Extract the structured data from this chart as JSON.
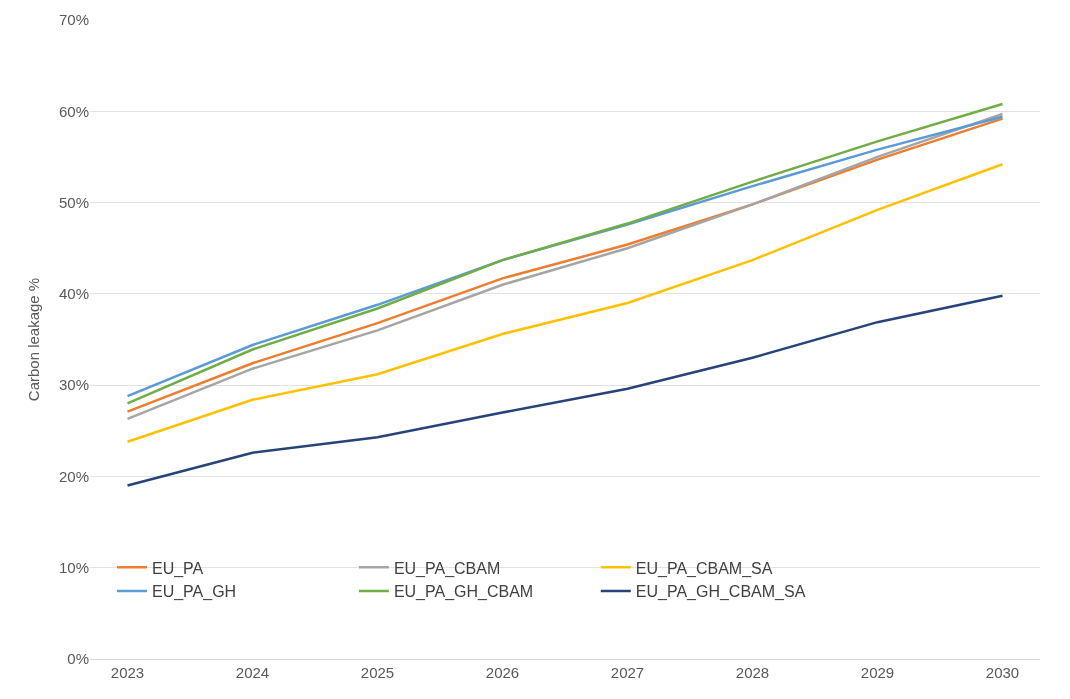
{
  "chart_data": {
    "type": "line",
    "ylabel": "Carbon leakage %",
    "categories": [
      "2023",
      "2024",
      "2025",
      "2026",
      "2027",
      "2028",
      "2029",
      "2030"
    ],
    "series": [
      {
        "name": "EU_PA",
        "color": "#ed7d31",
        "values": [
          27.1,
          32.4,
          36.8,
          41.7,
          45.4,
          49.8,
          54.7,
          59.2
        ]
      },
      {
        "name": "EU_PA_CBAM",
        "color": "#a5a5a5",
        "values": [
          26.3,
          31.8,
          36.0,
          41.0,
          45.0,
          49.8,
          55.0,
          59.7
        ]
      },
      {
        "name": "EU_PA_CBAM_SA",
        "color": "#ffc000",
        "values": [
          23.8,
          28.4,
          31.2,
          35.6,
          39.0,
          43.7,
          49.2,
          54.2
        ]
      },
      {
        "name": "EU_PA_GH",
        "color": "#5b9bd5",
        "values": [
          28.8,
          34.4,
          38.8,
          43.7,
          47.6,
          51.8,
          55.8,
          59.4
        ]
      },
      {
        "name": "EU_PA_GH_CBAM",
        "color": "#70ad47",
        "values": [
          28.0,
          33.9,
          38.4,
          43.7,
          47.7,
          52.3,
          56.7,
          60.8
        ]
      },
      {
        "name": "EU_PA_GH_CBAM_SA",
        "color": "#264478",
        "values": [
          19.0,
          22.6,
          24.3,
          27.0,
          29.6,
          33.0,
          36.9,
          39.8
        ]
      }
    ],
    "ylim": [
      0,
      70
    ],
    "yticks": [
      {
        "value": 0,
        "label": "0%"
      },
      {
        "value": 10,
        "label": "10%"
      },
      {
        "value": 20,
        "label": "20%"
      },
      {
        "value": 30,
        "label": "30%"
      },
      {
        "value": 40,
        "label": "40%"
      },
      {
        "value": 50,
        "label": "50%"
      },
      {
        "value": 60,
        "label": "60%"
      },
      {
        "value": 70,
        "label": "70%"
      }
    ],
    "grid": "y",
    "legend": "bottom",
    "marker": "none",
    "line_style": "solid"
  }
}
